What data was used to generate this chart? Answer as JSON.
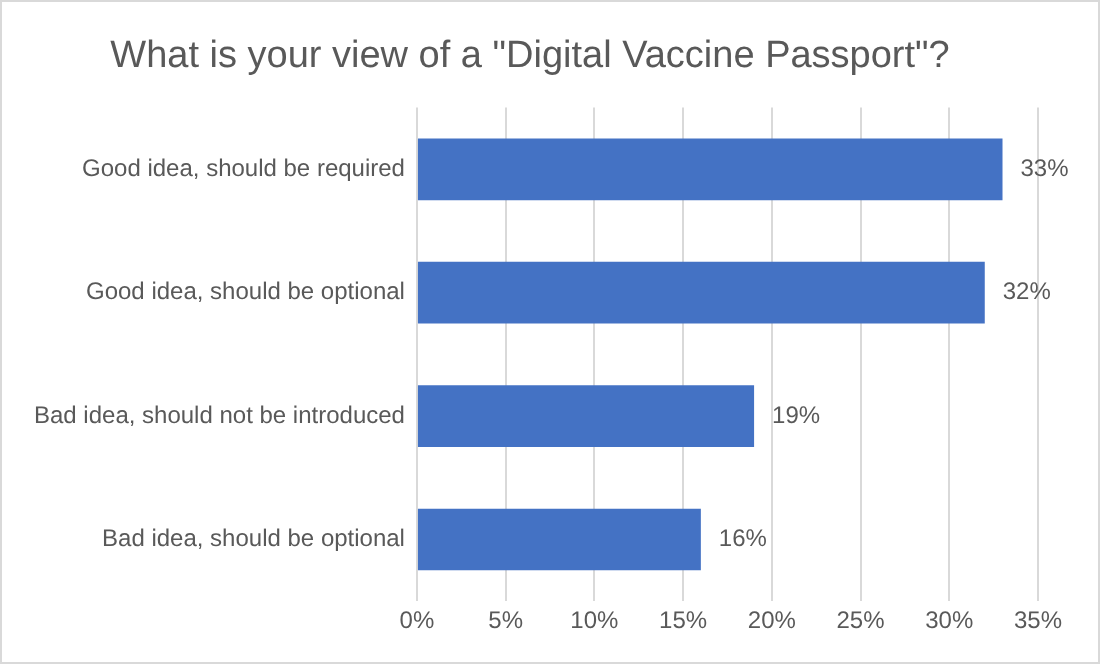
{
  "chart_data": {
    "type": "bar",
    "orientation": "horizontal",
    "title": "What is your view of a \"Digital Vaccine Passport\"?",
    "categories": [
      "Good idea, should be required",
      "Good idea, should be optional",
      "Bad idea, should not be introduced",
      "Bad idea, should be optional"
    ],
    "values": [
      33,
      32,
      19,
      16
    ],
    "value_labels": [
      "33%",
      "32%",
      "19%",
      "16%"
    ],
    "color": "#4472c4",
    "xlim": [
      0,
      35
    ],
    "xticks": [
      {
        "value": 0,
        "label": "0%"
      },
      {
        "value": 5,
        "label": "5%"
      },
      {
        "value": 10,
        "label": "10%"
      },
      {
        "value": 15,
        "label": "15%"
      },
      {
        "value": 20,
        "label": "20%"
      },
      {
        "value": 25,
        "label": "25%"
      },
      {
        "value": 30,
        "label": "30%"
      },
      {
        "value": 35,
        "label": "35%"
      }
    ],
    "grid": "x",
    "legend": false
  }
}
